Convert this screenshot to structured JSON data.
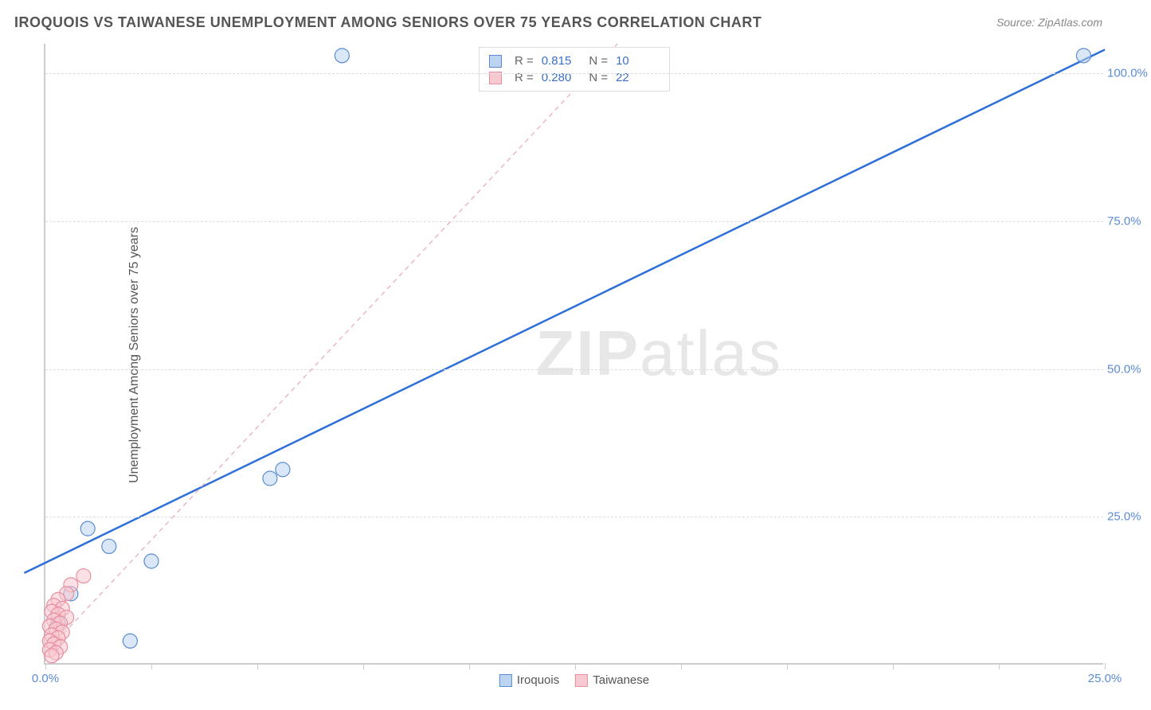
{
  "title": "IROQUOIS VS TAIWANESE UNEMPLOYMENT AMONG SENIORS OVER 75 YEARS CORRELATION CHART",
  "source": "Source: ZipAtlas.com",
  "chart": {
    "type": "scatter",
    "y_label": "Unemployment Among Seniors over 75 years",
    "background_color": "#ffffff",
    "grid_color": "#dddddd",
    "axis_color": "#cccccc",
    "xlim": [
      0,
      25
    ],
    "ylim": [
      0,
      105
    ],
    "x_ticks": [
      0,
      2.5,
      5,
      7.5,
      10,
      12.5,
      15,
      17.5,
      20,
      22.5,
      25
    ],
    "x_tick_labels": {
      "0": "0.0%",
      "25": "25.0%"
    },
    "y_gridlines": [
      25,
      50,
      75,
      100
    ],
    "y_tick_labels": {
      "25": "25.0%",
      "50": "50.0%",
      "75": "75.0%",
      "100": "100.0%"
    },
    "tick_label_color": "#5b8bd4",
    "tick_label_fontsize": 15,
    "watermark": "ZIPatlas",
    "bottom_legend": [
      {
        "label": "Iroquois",
        "fill": "#bcd4f0",
        "stroke": "#5b8bd4"
      },
      {
        "label": "Taiwanese",
        "fill": "#f7c9d0",
        "stroke": "#e78fa0"
      }
    ],
    "top_legend": [
      {
        "fill": "#bcd4f0",
        "stroke": "#5b8bd4",
        "r_label": "R =",
        "r_value": "0.815",
        "n_label": "N =",
        "n_value": "10"
      },
      {
        "fill": "#f7c9d0",
        "stroke": "#e78fa0",
        "r_label": "R =",
        "r_value": "0.280",
        "n_label": "N =",
        "n_value": "22"
      }
    ],
    "marker_radius": 9,
    "marker_opacity": 0.55,
    "series": [
      {
        "name": "Iroquois",
        "fill": "#bcd4f0",
        "stroke": "#5b8bd4",
        "points": [
          {
            "x": 7.0,
            "y": 103.0
          },
          {
            "x": 24.5,
            "y": 103.0
          },
          {
            "x": 5.6,
            "y": 33.0
          },
          {
            "x": 5.3,
            "y": 31.5
          },
          {
            "x": 1.0,
            "y": 23.0
          },
          {
            "x": 1.5,
            "y": 20.0
          },
          {
            "x": 2.5,
            "y": 17.5
          },
          {
            "x": 0.6,
            "y": 12.0
          },
          {
            "x": 0.3,
            "y": 7.0
          },
          {
            "x": 2.0,
            "y": 4.0
          }
        ],
        "trend": {
          "x1": -0.5,
          "y1": 15.5,
          "x2": 25.0,
          "y2": 104.0,
          "color": "#2e6fd9",
          "width": 2.5,
          "dash": "none"
        }
      },
      {
        "name": "Taiwanese",
        "fill": "#f7c9d0",
        "stroke": "#e78fa0",
        "points": [
          {
            "x": 0.9,
            "y": 15.0
          },
          {
            "x": 0.6,
            "y": 13.5
          },
          {
            "x": 0.5,
            "y": 12.0
          },
          {
            "x": 0.3,
            "y": 11.0
          },
          {
            "x": 0.2,
            "y": 10.0
          },
          {
            "x": 0.4,
            "y": 9.5
          },
          {
            "x": 0.15,
            "y": 9.0
          },
          {
            "x": 0.3,
            "y": 8.5
          },
          {
            "x": 0.5,
            "y": 8.0
          },
          {
            "x": 0.2,
            "y": 7.5
          },
          {
            "x": 0.35,
            "y": 7.0
          },
          {
            "x": 0.1,
            "y": 6.5
          },
          {
            "x": 0.25,
            "y": 6.0
          },
          {
            "x": 0.4,
            "y": 5.5
          },
          {
            "x": 0.15,
            "y": 5.0
          },
          {
            "x": 0.3,
            "y": 4.5
          },
          {
            "x": 0.1,
            "y": 4.0
          },
          {
            "x": 0.2,
            "y": 3.5
          },
          {
            "x": 0.35,
            "y": 3.0
          },
          {
            "x": 0.1,
            "y": 2.5
          },
          {
            "x": 0.25,
            "y": 2.0
          },
          {
            "x": 0.15,
            "y": 1.5
          }
        ],
        "trend": {
          "x1": 0.0,
          "y1": 2.0,
          "x2": 13.5,
          "y2": 105.0,
          "color": "#e8a8b5",
          "width": 1.2,
          "dash": "6,5"
        }
      }
    ]
  }
}
